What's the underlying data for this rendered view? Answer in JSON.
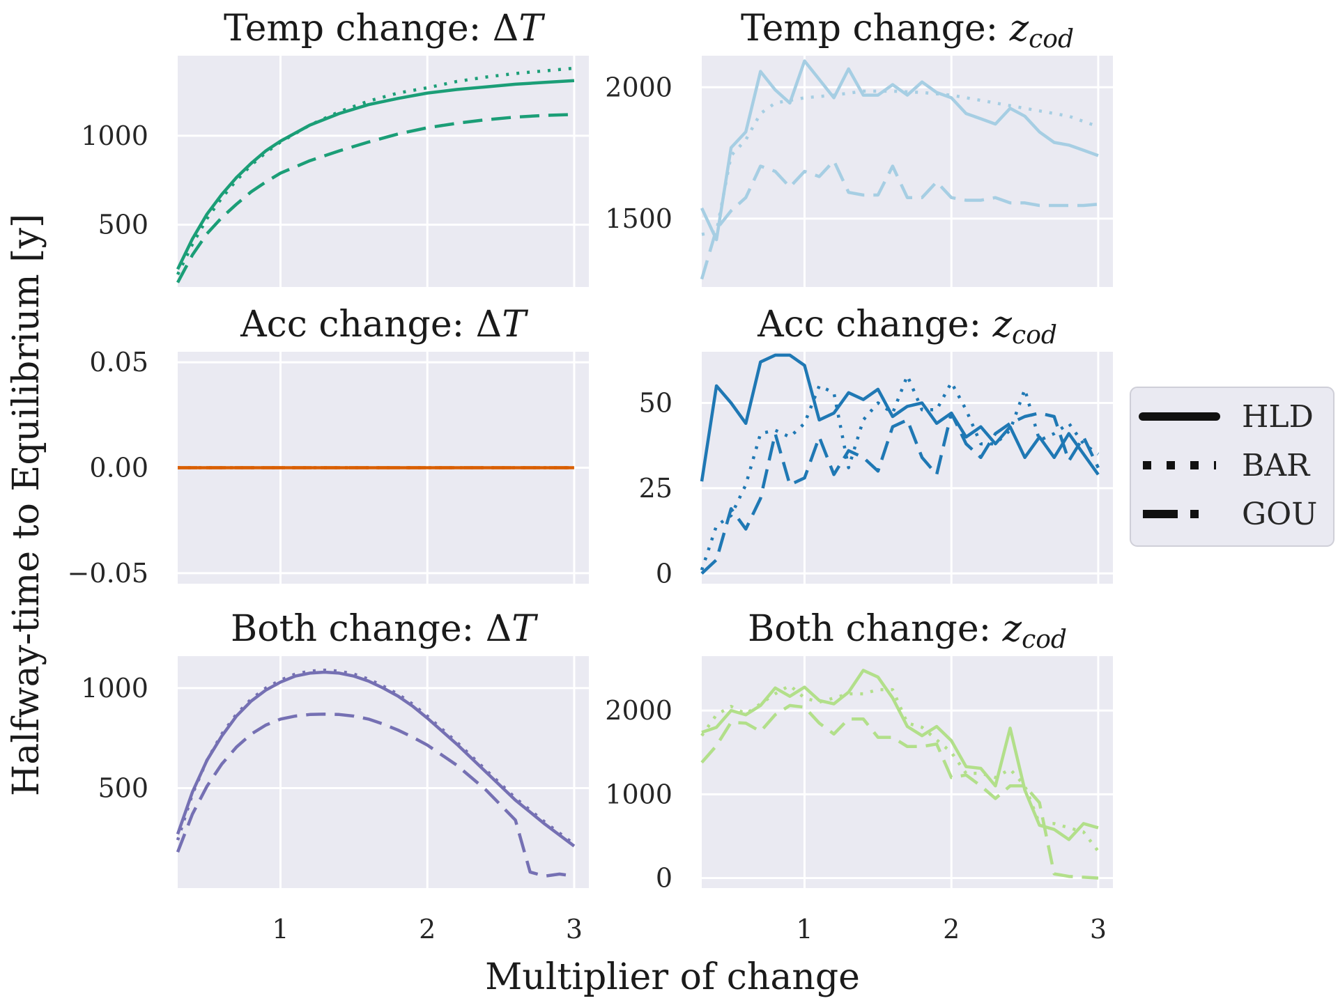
{
  "figure": {
    "ylabel": "Halfway-time to Equilibrium [y]",
    "xlabel": "Multiplier of change",
    "background": "#ffffff",
    "panel_background": "#eaeaf2",
    "grid_color": "#ffffff"
  },
  "legend": {
    "placement": "right",
    "entries": [
      {
        "label": "HLD",
        "style": "solid"
      },
      {
        "label": "BAR",
        "style": "dotted"
      },
      {
        "label": "GOU",
        "style": "dashed"
      }
    ]
  },
  "chart_data": [
    {
      "type": "line",
      "title": "Temp change: ΔT",
      "title_main": "Temp change: ",
      "title_sym": "Δ",
      "title_var": "T",
      "title_sub": "",
      "color": "#1b9e77",
      "xlim": [
        0.3,
        3.1
      ],
      "ylim": [
        150,
        1450
      ],
      "xticks": [
        1,
        2,
        3
      ],
      "xtick_labels": [
        "1",
        "2",
        "3"
      ],
      "yticks": [
        500,
        1000
      ],
      "ytick_labels": [
        "500",
        "1000"
      ],
      "series": [
        {
          "name": "HLD",
          "style": "solid",
          "x": [
            0.3,
            0.4,
            0.5,
            0.6,
            0.7,
            0.8,
            0.9,
            1.0,
            1.2,
            1.4,
            1.6,
            1.8,
            2.0,
            2.2,
            2.4,
            2.6,
            2.8,
            3.0
          ],
          "y": [
            250,
            420,
            560,
            670,
            765,
            845,
            915,
            970,
            1060,
            1125,
            1175,
            1210,
            1240,
            1260,
            1275,
            1290,
            1300,
            1310
          ]
        },
        {
          "name": "BAR",
          "style": "dotted",
          "x": [
            0.3,
            0.4,
            0.5,
            0.6,
            0.7,
            0.8,
            0.9,
            1.0,
            1.2,
            1.4,
            1.6,
            1.8,
            2.0,
            2.2,
            2.4,
            2.6,
            2.8,
            3.0
          ],
          "y": [
            220,
            390,
            535,
            650,
            750,
            835,
            905,
            965,
            1060,
            1135,
            1195,
            1240,
            1270,
            1305,
            1330,
            1350,
            1365,
            1380
          ]
        },
        {
          "name": "GOU",
          "style": "dashed",
          "x": [
            0.3,
            0.4,
            0.5,
            0.6,
            0.7,
            0.8,
            0.9,
            1.0,
            1.2,
            1.4,
            1.6,
            1.8,
            2.0,
            2.2,
            2.4,
            2.6,
            2.8,
            3.0
          ],
          "y": [
            175,
            330,
            450,
            540,
            615,
            685,
            740,
            790,
            860,
            915,
            965,
            1010,
            1045,
            1070,
            1090,
            1105,
            1115,
            1120
          ]
        }
      ]
    },
    {
      "type": "line",
      "title": "Temp change: z_cod",
      "title_main": "Temp change: ",
      "title_sym": "",
      "title_var": "z",
      "title_sub": "cod",
      "color": "#a6cee3",
      "xlim": [
        0.3,
        3.1
      ],
      "ylim": [
        1240,
        2120
      ],
      "xticks": [
        1,
        2,
        3
      ],
      "xtick_labels": [
        "1",
        "2",
        "3"
      ],
      "yticks": [
        1500,
        2000
      ],
      "ytick_labels": [
        "1500",
        "2000"
      ],
      "series": [
        {
          "name": "HLD",
          "style": "solid",
          "x": [
            0.3,
            0.4,
            0.5,
            0.6,
            0.7,
            0.8,
            0.9,
            1.0,
            1.1,
            1.2,
            1.3,
            1.4,
            1.5,
            1.6,
            1.7,
            1.8,
            1.9,
            2.0,
            2.1,
            2.2,
            2.3,
            2.4,
            2.5,
            2.6,
            2.7,
            2.8,
            2.9,
            3.0
          ],
          "y": [
            1540,
            1420,
            1770,
            1830,
            2060,
            1990,
            1940,
            2100,
            2030,
            1960,
            2070,
            1970,
            1970,
            2010,
            1970,
            2020,
            1980,
            1960,
            1900,
            1880,
            1860,
            1920,
            1890,
            1830,
            1790,
            1780,
            1760,
            1740
          ]
        },
        {
          "name": "BAR",
          "style": "dotted",
          "x": [
            0.3,
            0.4,
            0.5,
            0.6,
            0.7,
            0.8,
            0.9,
            1.0,
            1.2,
            1.4,
            1.6,
            1.8,
            2.0,
            2.2,
            2.4,
            2.6,
            2.8,
            3.0
          ],
          "y": [
            1440,
            1450,
            1740,
            1800,
            1900,
            1940,
            1950,
            1960,
            1970,
            1985,
            1985,
            1980,
            1970,
            1950,
            1930,
            1910,
            1890,
            1850
          ]
        },
        {
          "name": "GOU",
          "style": "dashed",
          "x": [
            0.3,
            0.4,
            0.5,
            0.6,
            0.7,
            0.8,
            0.9,
            1.0,
            1.1,
            1.2,
            1.3,
            1.4,
            1.5,
            1.6,
            1.7,
            1.8,
            1.9,
            2.0,
            2.1,
            2.2,
            2.3,
            2.4,
            2.5,
            2.6,
            2.7,
            2.8,
            2.9,
            3.0
          ],
          "y": [
            1270,
            1460,
            1530,
            1580,
            1700,
            1680,
            1620,
            1680,
            1660,
            1720,
            1600,
            1590,
            1590,
            1700,
            1580,
            1580,
            1640,
            1580,
            1570,
            1570,
            1580,
            1560,
            1560,
            1550,
            1550,
            1550,
            1550,
            1555
          ]
        }
      ]
    },
    {
      "type": "line",
      "title": "Acc change: ΔT",
      "title_main": "Acc change: ",
      "title_sym": "Δ",
      "title_var": "T",
      "title_sub": "",
      "color": "#d95f02",
      "xlim": [
        0.3,
        3.1
      ],
      "ylim": [
        -0.055,
        0.055
      ],
      "xticks": [
        1,
        2,
        3
      ],
      "xtick_labels": [
        "1",
        "2",
        "3"
      ],
      "yticks": [
        -0.05,
        0.0,
        0.05
      ],
      "ytick_labels": [
        "−0.05",
        "0.00",
        "0.05"
      ],
      "series": [
        {
          "name": "HLD",
          "style": "solid",
          "x": [
            0.3,
            3.0
          ],
          "y": [
            0,
            0
          ]
        },
        {
          "name": "BAR",
          "style": "dotted",
          "x": [
            0.3,
            3.0
          ],
          "y": [
            0,
            0
          ]
        },
        {
          "name": "GOU",
          "style": "dashed",
          "x": [
            0.3,
            3.0
          ],
          "y": [
            0,
            0
          ]
        }
      ]
    },
    {
      "type": "line",
      "title": "Acc change: z_cod",
      "title_main": "Acc change: ",
      "title_sym": "",
      "title_var": "z",
      "title_sub": "cod",
      "color": "#1f78b4",
      "xlim": [
        0.3,
        3.1
      ],
      "ylim": [
        -3,
        65
      ],
      "xticks": [
        1,
        2,
        3
      ],
      "xtick_labels": [
        "1",
        "2",
        "3"
      ],
      "yticks": [
        0,
        25,
        50
      ],
      "ytick_labels": [
        "0",
        "25",
        "50"
      ],
      "series": [
        {
          "name": "HLD",
          "style": "solid",
          "x": [
            0.3,
            0.4,
            0.5,
            0.6,
            0.7,
            0.8,
            0.9,
            1.0,
            1.1,
            1.2,
            1.3,
            1.4,
            1.5,
            1.6,
            1.7,
            1.8,
            1.9,
            2.0,
            2.1,
            2.2,
            2.3,
            2.4,
            2.5,
            2.6,
            2.7,
            2.8,
            2.9,
            3.0
          ],
          "y": [
            27,
            55,
            50,
            44,
            62,
            64,
            64,
            61,
            45,
            47,
            53,
            51,
            54,
            46,
            49,
            50,
            44,
            47,
            40,
            43,
            38,
            43,
            34,
            40,
            34,
            41,
            35,
            29
          ]
        },
        {
          "name": "BAR",
          "style": "dotted",
          "x": [
            0.3,
            0.4,
            0.5,
            0.6,
            0.7,
            0.8,
            0.9,
            1.0,
            1.1,
            1.2,
            1.3,
            1.4,
            1.5,
            1.6,
            1.7,
            1.8,
            1.9,
            2.0,
            2.1,
            2.2,
            2.3,
            2.4,
            2.5,
            2.6,
            2.7,
            2.8,
            2.9,
            3.0
          ],
          "y": [
            1,
            14,
            17,
            26,
            41,
            42,
            40,
            44,
            55,
            53,
            31,
            45,
            50,
            47,
            58,
            48,
            48,
            56,
            48,
            38,
            38,
            42,
            54,
            39,
            41,
            44,
            38,
            35
          ]
        },
        {
          "name": "GOU",
          "style": "dashed",
          "x": [
            0.3,
            0.4,
            0.5,
            0.6,
            0.7,
            0.8,
            0.9,
            1.0,
            1.1,
            1.2,
            1.3,
            1.4,
            1.5,
            1.6,
            1.7,
            1.8,
            1.9,
            2.0,
            2.1,
            2.2,
            2.3,
            2.4,
            2.5,
            2.6,
            2.7,
            2.8,
            2.9,
            3.0
          ],
          "y": [
            0,
            4,
            19,
            13,
            22,
            41,
            26,
            28,
            40,
            29,
            36,
            34,
            30,
            43,
            45,
            34,
            29,
            47,
            38,
            34,
            41,
            44,
            46,
            47,
            46,
            33,
            40,
            31
          ]
        }
      ]
    },
    {
      "type": "line",
      "title": "Both change: ΔT",
      "title_main": "Both change: ",
      "title_sym": "Δ",
      "title_var": "T",
      "title_sub": "",
      "color": "#7570b3",
      "xlim": [
        0.3,
        3.1
      ],
      "ylim": [
        0,
        1160
      ],
      "xticks": [
        1,
        2,
        3
      ],
      "xtick_labels": [
        "1",
        "2",
        "3"
      ],
      "yticks": [
        500,
        1000
      ],
      "ytick_labels": [
        "500",
        "1000"
      ],
      "series": [
        {
          "name": "HLD",
          "style": "solid",
          "x": [
            0.3,
            0.4,
            0.5,
            0.6,
            0.7,
            0.8,
            0.9,
            1.0,
            1.1,
            1.2,
            1.3,
            1.4,
            1.5,
            1.6,
            1.7,
            1.8,
            1.9,
            2.0,
            2.2,
            2.4,
            2.6,
            2.8,
            3.0
          ],
          "y": [
            270,
            480,
            640,
            760,
            860,
            935,
            990,
            1030,
            1060,
            1075,
            1080,
            1075,
            1060,
            1035,
            1000,
            960,
            910,
            850,
            720,
            580,
            440,
            320,
            210
          ]
        },
        {
          "name": "BAR",
          "style": "dotted",
          "x": [
            0.3,
            0.4,
            0.5,
            0.6,
            0.7,
            0.8,
            0.9,
            1.0,
            1.1,
            1.2,
            1.3,
            1.4,
            1.5,
            1.6,
            1.7,
            1.8,
            1.9,
            2.0,
            2.2,
            2.4,
            2.6,
            2.8,
            3.0
          ],
          "y": [
            240,
            470,
            640,
            770,
            870,
            945,
            1000,
            1040,
            1070,
            1085,
            1090,
            1085,
            1070,
            1045,
            1010,
            970,
            920,
            860,
            730,
            590,
            450,
            330,
            220
          ]
        },
        {
          "name": "GOU",
          "style": "dashed",
          "x": [
            0.3,
            0.4,
            0.5,
            0.6,
            0.7,
            0.8,
            0.9,
            1.0,
            1.1,
            1.2,
            1.3,
            1.4,
            1.5,
            1.6,
            1.7,
            1.8,
            1.9,
            2.0,
            2.2,
            2.4,
            2.6,
            2.7,
            2.8,
            2.9,
            3.0
          ],
          "y": [
            180,
            370,
            510,
            620,
            705,
            770,
            815,
            845,
            860,
            868,
            870,
            868,
            860,
            845,
            820,
            790,
            755,
            715,
            615,
            490,
            340,
            80,
            60,
            70,
            60
          ]
        }
      ]
    },
    {
      "type": "line",
      "title": "Both change: z_cod",
      "title_main": "Both change: ",
      "title_sym": "",
      "title_var": "z",
      "title_sub": "cod",
      "color": "#b2df8a",
      "xlim": [
        0.3,
        3.1
      ],
      "ylim": [
        -120,
        2650
      ],
      "xticks": [
        1,
        2,
        3
      ],
      "xtick_labels": [
        "1",
        "2",
        "3"
      ],
      "yticks": [
        0,
        1000,
        2000
      ],
      "ytick_labels": [
        "0",
        "1000",
        "2000"
      ],
      "series": [
        {
          "name": "HLD",
          "style": "solid",
          "x": [
            0.3,
            0.4,
            0.5,
            0.6,
            0.7,
            0.8,
            0.9,
            1.0,
            1.1,
            1.2,
            1.3,
            1.4,
            1.5,
            1.6,
            1.7,
            1.8,
            1.9,
            2.0,
            2.1,
            2.2,
            2.3,
            2.4,
            2.5,
            2.6,
            2.7,
            2.8,
            2.9,
            3.0
          ],
          "y": [
            1740,
            1800,
            2000,
            1950,
            2060,
            2270,
            2170,
            2280,
            2120,
            2080,
            2220,
            2480,
            2400,
            2150,
            1810,
            1700,
            1810,
            1640,
            1330,
            1310,
            1100,
            1790,
            1050,
            630,
            580,
            460,
            650,
            600
          ]
        },
        {
          "name": "BAR",
          "style": "dotted",
          "x": [
            0.3,
            0.4,
            0.5,
            0.6,
            0.7,
            0.8,
            0.9,
            1.0,
            1.1,
            1.2,
            1.3,
            1.4,
            1.5,
            1.6,
            1.7,
            1.8,
            1.9,
            2.0,
            2.1,
            2.2,
            2.3,
            2.4,
            2.5,
            2.6,
            2.7,
            2.8,
            2.9,
            3.0
          ],
          "y": [
            1700,
            1950,
            2050,
            1960,
            2080,
            2200,
            2300,
            2150,
            2100,
            2150,
            2200,
            2200,
            2250,
            2250,
            1850,
            1800,
            1650,
            1500,
            1250,
            1250,
            1200,
            1300,
            1100,
            650,
            650,
            600,
            550,
            320
          ]
        },
        {
          "name": "GOU",
          "style": "dashed",
          "x": [
            0.3,
            0.4,
            0.5,
            0.6,
            0.7,
            0.8,
            0.9,
            1.0,
            1.1,
            1.2,
            1.3,
            1.4,
            1.5,
            1.6,
            1.7,
            1.8,
            1.9,
            2.0,
            2.1,
            2.2,
            2.3,
            2.4,
            2.5,
            2.6,
            2.7,
            2.8,
            2.9,
            3.0
          ],
          "y": [
            1380,
            1580,
            1860,
            1850,
            1750,
            1950,
            2060,
            2040,
            1850,
            1720,
            1900,
            1900,
            1680,
            1680,
            1570,
            1570,
            1600,
            1200,
            1230,
            1100,
            950,
            1100,
            1100,
            900,
            50,
            20,
            10,
            0
          ]
        }
      ]
    }
  ]
}
